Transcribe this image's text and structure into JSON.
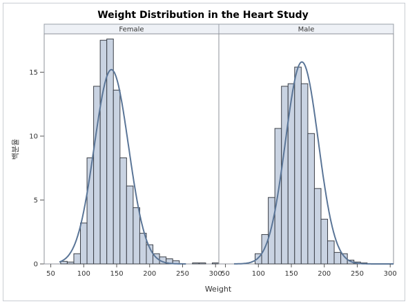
{
  "chart_data": {
    "type": "bar",
    "title": "Weight Distribution in the Heart Study",
    "xlabel": "Weight",
    "ylabel": "백분율",
    "xticks": [
      50,
      100,
      150,
      200,
      250,
      300
    ],
    "yticks": [
      0,
      5,
      10,
      15
    ],
    "xlim": [
      40,
      305
    ],
    "ylim": [
      0,
      18
    ],
    "bin_width": 10,
    "colors": {
      "bar_fill": "#c9d3e2",
      "bar_stroke": "#3b3f47",
      "curve": "#5a7597",
      "header_fill": "#eef1f6"
    },
    "panels": [
      {
        "label": "Female",
        "bins": [
          {
            "x": 70,
            "value": 0.2
          },
          {
            "x": 80,
            "value": 0.15
          },
          {
            "x": 90,
            "value": 0.8
          },
          {
            "x": 100,
            "value": 3.2
          },
          {
            "x": 110,
            "value": 8.3
          },
          {
            "x": 120,
            "value": 13.9
          },
          {
            "x": 130,
            "value": 17.5
          },
          {
            "x": 140,
            "value": 17.6
          },
          {
            "x": 150,
            "value": 13.6
          },
          {
            "x": 160,
            "value": 8.3
          },
          {
            "x": 170,
            "value": 6.1
          },
          {
            "x": 180,
            "value": 4.4
          },
          {
            "x": 190,
            "value": 2.4
          },
          {
            "x": 200,
            "value": 1.5
          },
          {
            "x": 210,
            "value": 0.8
          },
          {
            "x": 220,
            "value": 0.55
          },
          {
            "x": 230,
            "value": 0.4
          },
          {
            "x": 240,
            "value": 0.25
          },
          {
            "x": 270,
            "value": 0.08
          },
          {
            "x": 280,
            "value": 0.08
          },
          {
            "x": 300,
            "value": 0.08
          }
        ],
        "normal_curve": {
          "mean": 142,
          "sd": 26,
          "peak": 15.2,
          "x_start": 63,
          "x_end": 255
        }
      },
      {
        "label": "Male",
        "bins": [
          {
            "x": 100,
            "value": 0.8
          },
          {
            "x": 110,
            "value": 2.3
          },
          {
            "x": 120,
            "value": 5.2
          },
          {
            "x": 130,
            "value": 10.6
          },
          {
            "x": 140,
            "value": 13.9
          },
          {
            "x": 150,
            "value": 14.1
          },
          {
            "x": 160,
            "value": 15.4
          },
          {
            "x": 170,
            "value": 14.1
          },
          {
            "x": 180,
            "value": 10.2
          },
          {
            "x": 190,
            "value": 5.9
          },
          {
            "x": 200,
            "value": 3.5
          },
          {
            "x": 210,
            "value": 1.8
          },
          {
            "x": 220,
            "value": 0.9
          },
          {
            "x": 230,
            "value": 0.8
          },
          {
            "x": 240,
            "value": 0.3
          },
          {
            "x": 250,
            "value": 0.15
          },
          {
            "x": 260,
            "value": 0.08
          }
        ],
        "normal_curve": {
          "mean": 166,
          "sd": 25,
          "peak": 15.8,
          "x_start": 63,
          "x_end": 305
        }
      }
    ]
  }
}
